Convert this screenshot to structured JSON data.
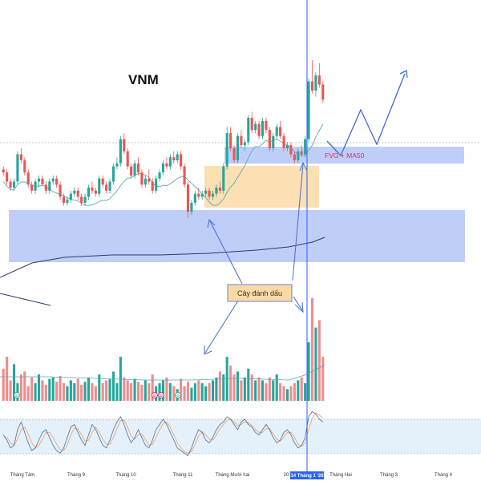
{
  "chart_data": {
    "type": "candlestick",
    "symbol": "VNM",
    "annotations": {
      "marker_label": "Cây đánh dấu",
      "fvg_label": "FVG + MA50"
    },
    "x_axis": {
      "ticks": [
        "Tháng Tám",
        "Tháng 9",
        "Tháng 10",
        "Tháng 11",
        "Tháng Mười hai",
        "20",
        "14 Tháng 1 '26",
        "Tháng Hai",
        "Tháng 3",
        "Tháng 4"
      ]
    },
    "event_badges": [
      "D",
      "D",
      "D",
      "D"
    ],
    "colors": {
      "up": "#26a69a",
      "down": "#ef5350",
      "zone": "#aabdf7",
      "zone_orange": "#fbd9a4",
      "ma_short": "#5aa9b8",
      "ma_long": "#2b3a67",
      "arrow": "#3f6ad8",
      "crosshair": "#2962ff",
      "stoch_k": "#4a6fa5",
      "stoch_d": "#f39c5a"
    },
    "price_range": [
      26,
      100
    ],
    "candles": [
      [
        60,
        61,
        58,
        59
      ],
      [
        59,
        60,
        55,
        56
      ],
      [
        56,
        57,
        53,
        54
      ],
      [
        54,
        57,
        53,
        56
      ],
      [
        56,
        66,
        55,
        65
      ],
      [
        65,
        67,
        62,
        63
      ],
      [
        63,
        64,
        58,
        59
      ],
      [
        59,
        60,
        54,
        55
      ],
      [
        55,
        56,
        52,
        53
      ],
      [
        53,
        57,
        52,
        56
      ],
      [
        56,
        58,
        54,
        57
      ],
      [
        57,
        58,
        55,
        55
      ],
      [
        55,
        56,
        52,
        53
      ],
      [
        53,
        57,
        52,
        56
      ],
      [
        56,
        58,
        55,
        57
      ],
      [
        57,
        58,
        54,
        55
      ],
      [
        55,
        56,
        50,
        51
      ],
      [
        51,
        52,
        48,
        49
      ],
      [
        49,
        51,
        48,
        50
      ],
      [
        50,
        53,
        49,
        52
      ],
      [
        52,
        54,
        51,
        53
      ],
      [
        53,
        54,
        50,
        51
      ],
      [
        51,
        52,
        48,
        49
      ],
      [
        49,
        52,
        48,
        51
      ],
      [
        51,
        55,
        50,
        54
      ],
      [
        54,
        56,
        52,
        53
      ],
      [
        53,
        54,
        51,
        52
      ],
      [
        52,
        58,
        51,
        57
      ],
      [
        57,
        58,
        54,
        55
      ],
      [
        55,
        56,
        52,
        53
      ],
      [
        53,
        57,
        52,
        56
      ],
      [
        56,
        62,
        55,
        61
      ],
      [
        61,
        64,
        60,
        62
      ],
      [
        62,
        71,
        61,
        70
      ],
      [
        70,
        72,
        65,
        66
      ],
      [
        66,
        67,
        60,
        61
      ],
      [
        61,
        62,
        57,
        58
      ],
      [
        58,
        63,
        57,
        62
      ],
      [
        62,
        64,
        58,
        59
      ],
      [
        59,
        60,
        54,
        55
      ],
      [
        55,
        58,
        54,
        57
      ],
      [
        57,
        60,
        55,
        56
      ],
      [
        56,
        57,
        52,
        53
      ],
      [
        53,
        58,
        52,
        57
      ],
      [
        57,
        60,
        56,
        59
      ],
      [
        59,
        63,
        58,
        62
      ],
      [
        62,
        64,
        60,
        61
      ],
      [
        61,
        65,
        60,
        64
      ],
      [
        64,
        66,
        62,
        63
      ],
      [
        63,
        66,
        62,
        65
      ],
      [
        65,
        66,
        60,
        61
      ],
      [
        61,
        62,
        54,
        55
      ],
      [
        55,
        56,
        44,
        46
      ],
      [
        46,
        50,
        45,
        49
      ],
      [
        49,
        53,
        48,
        52
      ],
      [
        52,
        54,
        50,
        51
      ],
      [
        51,
        53,
        50,
        52
      ],
      [
        52,
        54,
        51,
        53
      ],
      [
        53,
        54,
        50,
        51
      ],
      [
        51,
        53,
        50,
        52
      ],
      [
        52,
        55,
        51,
        54
      ],
      [
        54,
        56,
        52,
        53
      ],
      [
        53,
        62,
        52,
        61
      ],
      [
        61,
        74,
        60,
        72
      ],
      [
        72,
        74,
        66,
        67
      ],
      [
        67,
        68,
        62,
        63
      ],
      [
        63,
        72,
        62,
        71
      ],
      [
        71,
        73,
        67,
        68
      ],
      [
        68,
        70,
        66,
        69
      ],
      [
        69,
        78,
        68,
        77
      ],
      [
        77,
        79,
        72,
        73
      ],
      [
        73,
        76,
        72,
        75
      ],
      [
        75,
        76,
        70,
        71
      ],
      [
        71,
        77,
        70,
        76
      ],
      [
        76,
        77,
        72,
        73
      ],
      [
        73,
        74,
        66,
        67
      ],
      [
        67,
        72,
        66,
        71
      ],
      [
        71,
        75,
        70,
        74
      ],
      [
        74,
        76,
        70,
        71
      ],
      [
        71,
        72,
        66,
        67
      ],
      [
        67,
        69,
        66,
        68
      ],
      [
        68,
        69,
        64,
        65
      ],
      [
        65,
        66,
        62,
        63
      ],
      [
        63,
        67,
        62,
        66
      ],
      [
        66,
        68,
        64,
        65
      ],
      [
        65,
        71,
        64,
        70
      ],
      [
        70,
        90,
        69,
        89
      ],
      [
        89,
        96,
        85,
        86
      ],
      [
        86,
        92,
        84,
        91
      ],
      [
        91,
        95,
        87,
        88
      ],
      [
        88,
        89,
        82,
        83
      ]
    ],
    "volume": [
      22,
      30,
      14,
      25,
      12,
      18,
      20,
      10,
      16,
      12,
      18,
      14,
      11,
      15,
      16,
      13,
      17,
      12,
      10,
      14,
      12,
      15,
      11,
      13,
      16,
      12,
      10,
      18,
      12,
      14,
      15,
      20,
      12,
      30,
      16,
      14,
      12,
      15,
      13,
      11,
      14,
      12,
      18,
      10,
      12,
      14,
      16,
      12,
      10,
      8,
      15,
      10,
      13,
      9,
      12,
      14,
      12,
      10,
      12,
      14,
      16,
      20,
      18,
      30,
      24,
      18,
      20,
      14,
      16,
      22,
      18,
      14,
      16,
      14,
      12,
      16,
      14,
      18,
      12,
      10,
      8,
      10,
      12,
      14,
      16,
      12,
      40,
      70,
      50,
      55,
      30
    ],
    "stochastic": {
      "k": [
        50,
        40,
        25,
        30,
        60,
        75,
        55,
        35,
        20,
        25,
        40,
        55,
        60,
        45,
        30,
        20,
        15,
        25,
        45,
        65,
        70,
        55,
        40,
        30,
        50,
        70,
        60,
        45,
        30,
        25,
        40,
        60,
        75,
        85,
        70,
        50,
        35,
        45,
        60,
        45,
        30,
        25,
        40,
        60,
        70,
        80,
        70,
        55,
        40,
        25,
        20,
        15,
        10,
        25,
        45,
        60,
        55,
        40,
        35,
        45,
        60,
        70,
        75,
        85,
        80,
        70,
        60,
        75,
        80,
        70,
        65,
        55,
        50,
        60,
        70,
        60,
        45,
        35,
        40,
        55,
        60,
        50,
        35,
        25,
        30,
        45,
        85,
        95,
        90,
        80,
        75
      ],
      "d": [
        48,
        45,
        35,
        30,
        42,
        60,
        65,
        52,
        35,
        25,
        30,
        42,
        55,
        55,
        45,
        32,
        22,
        20,
        30,
        50,
        63,
        62,
        50,
        38,
        40,
        55,
        65,
        55,
        42,
        32,
        32,
        45,
        62,
        78,
        78,
        65,
        48,
        42,
        50,
        52,
        42,
        30,
        32,
        45,
        60,
        72,
        75,
        65,
        50,
        35,
        25,
        18,
        15,
        18,
        32,
        48,
        56,
        50,
        42,
        40,
        50,
        62,
        70,
        78,
        80,
        75,
        68,
        70,
        75,
        73,
        68,
        60,
        55,
        55,
        62,
        62,
        52,
        42,
        38,
        46,
        55,
        55,
        45,
        32,
        28,
        35,
        60,
        82,
        92,
        88,
        82
      ]
    }
  }
}
